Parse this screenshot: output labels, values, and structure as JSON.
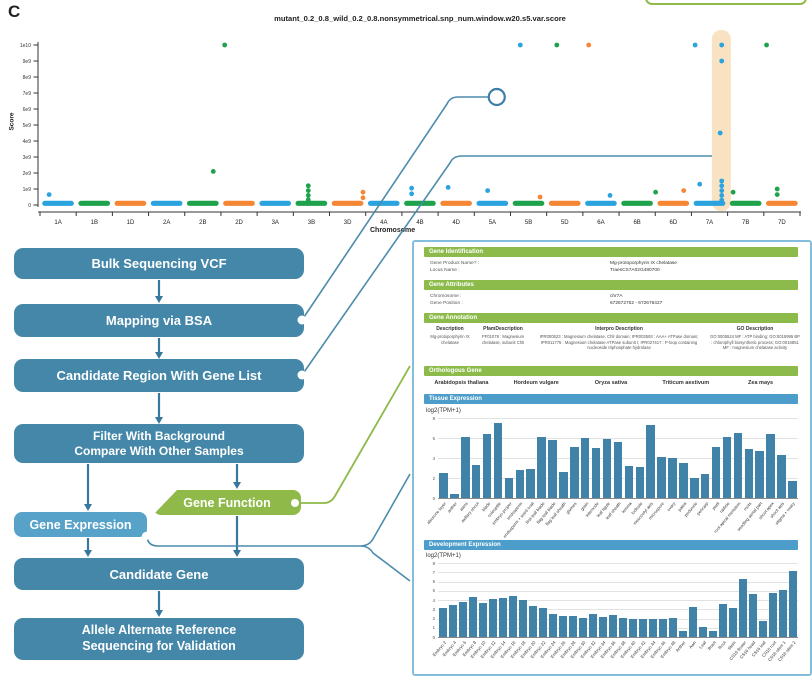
{
  "panel_label": "C",
  "chart_data": [
    {
      "type": "scatter",
      "name": "manhattan-plot",
      "title": "mutant_0.2_0.8_wild_0.2_0.8.nonsymmetrical.snp_num.window.w20.s5.var.score",
      "xlabel": "Chromosome",
      "ylabel": "Score",
      "ylim": [
        0,
        10000000000
      ],
      "ytick_labels": [
        "1e10",
        "9e9",
        "8e9",
        "7e9",
        "6e9",
        "5e9",
        "4e9",
        "3e9",
        "2e9",
        "1e9",
        "0"
      ],
      "chromosomes": [
        "1A",
        "1B",
        "1D",
        "2A",
        "2B",
        "2D",
        "3A",
        "3B",
        "3D",
        "4A",
        "4B",
        "4D",
        "5A",
        "5B",
        "5D",
        "6A",
        "6B",
        "6D",
        "7A",
        "7B",
        "7D"
      ],
      "chrom_colors": [
        "#2aa3df",
        "#1ea24b",
        "#f58634"
      ],
      "baseline_note": "dense row of windows at score ~0 along every chromosome",
      "highlight": {
        "x0": 0.884,
        "x1": 0.909,
        "chrom": "7A",
        "color": "#f9e2c2"
      },
      "ring_marker": {
        "x": 0.601,
        "score_e9": 6.75
      },
      "outliers": [
        [
          0.243,
          10,
          "g"
        ],
        [
          0.632,
          10,
          "b"
        ],
        [
          0.68,
          10,
          "g"
        ],
        [
          0.722,
          10,
          "o"
        ],
        [
          0.862,
          10,
          "b"
        ],
        [
          0.897,
          10,
          "b"
        ],
        [
          0.956,
          10,
          "g"
        ],
        [
          0.897,
          9.0,
          "b"
        ],
        [
          0.895,
          4.5,
          "b"
        ],
        [
          0.228,
          2.1,
          "g"
        ],
        [
          0.353,
          1.2,
          "g"
        ],
        [
          0.353,
          0.9,
          "g"
        ],
        [
          0.353,
          0.6,
          "g"
        ],
        [
          0.353,
          0.32,
          "g"
        ],
        [
          0.425,
          0.8,
          "o"
        ],
        [
          0.425,
          0.45,
          "o"
        ],
        [
          0.489,
          1.05,
          "b"
        ],
        [
          0.489,
          0.7,
          "b"
        ],
        [
          0.537,
          1.1,
          "b"
        ],
        [
          0.589,
          0.9,
          "b"
        ],
        [
          0.658,
          0.5,
          "o"
        ],
        [
          0.75,
          0.6,
          "b"
        ],
        [
          0.81,
          0.8,
          "g"
        ],
        [
          0.847,
          0.9,
          "o"
        ],
        [
          0.868,
          1.3,
          "b"
        ],
        [
          0.897,
          1.5,
          "b"
        ],
        [
          0.897,
          1.2,
          "b"
        ],
        [
          0.897,
          0.9,
          "b"
        ],
        [
          0.897,
          0.6,
          "b"
        ],
        [
          0.897,
          0.3,
          "b"
        ],
        [
          0.912,
          0.8,
          "g"
        ],
        [
          0.97,
          1.0,
          "g"
        ],
        [
          0.97,
          0.65,
          "g"
        ],
        [
          0.012,
          0.65,
          "b"
        ]
      ]
    },
    {
      "type": "bar",
      "name": "tissue-expression",
      "title": "Tissue Expression",
      "ylabel": "log2(TPM+1)",
      "ymax": 8,
      "yticks": [
        0,
        2,
        4,
        6,
        8
      ],
      "bar_color": "#4182a8",
      "categories": [
        "aleurone layer",
        "anther",
        "awns",
        "axillary shoot",
        "blade",
        "coleoptile",
        "embryo proper",
        "endosperm",
        "endosperm + seed coat",
        "first leaf blade",
        "flag leaf blade",
        "flag leaf sheath",
        "glumes",
        "grain",
        "internode",
        "leaf ligule",
        "leaf sheath",
        "lemma",
        "lodicule",
        "mesocotyl axis",
        "microspore",
        "ovary",
        "palea",
        "peduncle",
        "pericarp",
        "pistil",
        "radicle",
        "root apical meristem",
        "roots",
        "seedling aerial part",
        "shoot apex",
        "shoot axis",
        "stigma + ovary"
      ],
      "values": [
        2.5,
        0.4,
        6.1,
        3.3,
        6.4,
        7.5,
        2.0,
        2.8,
        2.9,
        6.1,
        5.8,
        2.6,
        5.1,
        6.0,
        5.0,
        5.9,
        5.6,
        3.2,
        3.1,
        7.3,
        4.1,
        4.0,
        3.5,
        2.0,
        2.4,
        5.1,
        6.1,
        6.5,
        4.9,
        4.7,
        6.4,
        4.3,
        1.7
      ]
    },
    {
      "type": "bar",
      "name": "development-expression",
      "title": "Development Expression",
      "ylabel": "log2(TPM+1)",
      "ymax": 8,
      "yticks": [
        0,
        1,
        2,
        3,
        4,
        5,
        6,
        7,
        8
      ],
      "bar_color": "#4182a8",
      "categories": [
        "Embryo 2",
        "Embryo 4",
        "Embryo 6",
        "Embryo 8",
        "Embryo 10",
        "Embryo 12",
        "Embryo 14",
        "Embryo 16",
        "Embryo 18",
        "Embryo 20",
        "Embryo 22",
        "Embryo 24",
        "Embryo 26",
        "Embryo 28",
        "Embryo 30",
        "Embryo 32",
        "Embryo 34",
        "Embryo 36",
        "Embryo 38",
        "Embryo 40",
        "Embryo 42",
        "Embryo 44",
        "Embryo 46",
        "Embryo 48",
        "Anther",
        "Awn",
        "Leaf",
        "Bract",
        "Root",
        "Stem",
        "CS16 flower",
        "CS16 head",
        "CS16 leaf",
        "CS16 root",
        "CS16 stem 1",
        "CS16 stem 2"
      ],
      "values": [
        3.1,
        3.5,
        3.8,
        4.3,
        3.7,
        4.1,
        4.2,
        4.4,
        4.0,
        3.4,
        3.1,
        2.5,
        2.3,
        2.3,
        2.1,
        2.5,
        2.2,
        2.4,
        2.1,
        2.0,
        1.9,
        1.9,
        1.9,
        2.1,
        0.7,
        3.2,
        1.1,
        0.7,
        3.6,
        3.1,
        6.3,
        4.6,
        1.7,
        4.8,
        5.1,
        7.1
      ]
    }
  ],
  "flowchart": {
    "bulk": "Bulk Sequencing VCF",
    "mapping": "Mapping via BSA",
    "candidate_region": "Candidate Region With Gene List",
    "filter_line1": "Filter With Background",
    "filter_line2": "Compare With Other Samples",
    "gene_expression": "Gene Expression",
    "gene_function": "Gene Function",
    "candidate_gene": "Candidate Gene",
    "validation_line1": "Allele Alternate Reference",
    "validation_line2": "Sequencing for Validation",
    "box_color": "#4587a9",
    "light_box_color": "#57a2c9",
    "green_box_color": "#8fba4a"
  },
  "gene_panel": {
    "border_color": "#85bedd",
    "section_color": "#8cbb4b",
    "expression_section_color": "#4d9dcb",
    "identification": {
      "title": "Gene Identification",
      "rows": [
        {
          "label": "Gene Product Name? :",
          "value": "Mg-protoporphyrin IX chelatase"
        },
        {
          "label": "Locus Name :",
          "value": "TraesCS7A02G480700"
        }
      ]
    },
    "attributes": {
      "title": "Gene Attributes",
      "rows": [
        {
          "label": "Chromosome :",
          "value": "chr7A"
        },
        {
          "label": "Gene Position :",
          "value": "672672752 - 672676427"
        }
      ]
    },
    "annotation": {
      "title": "Gene Annotation",
      "headers": [
        "Description",
        "PfamDescription",
        "Interpro Description",
        "GO Description"
      ],
      "cells": [
        "Mg-protoporphyrin IX chelatase",
        "PF01078 : Magnesium chelatase, subunit ChlI",
        "IPR000523 : Magnesium chelatase, ChlI domain; IPR003593 : AAA+ ATPase domain; IPR011775 : Magnesium chelatase ATPase subunit I; IPR027417 : P-loop containing nucleoside triphosphate hydrolase",
        "GO:0005524 MF : ATP binding; GO:0015995 BP : chlorophyll biosynthetic process; GO:0016851 MF : magnesium chelatase activity"
      ]
    },
    "orthologous": {
      "title": "Orthologous Gene",
      "species": [
        "Arabidopsis thaliana",
        "Hordeum vulgare",
        "Oryza sativa",
        "Triticum aestivum",
        "Zea mays"
      ]
    }
  }
}
